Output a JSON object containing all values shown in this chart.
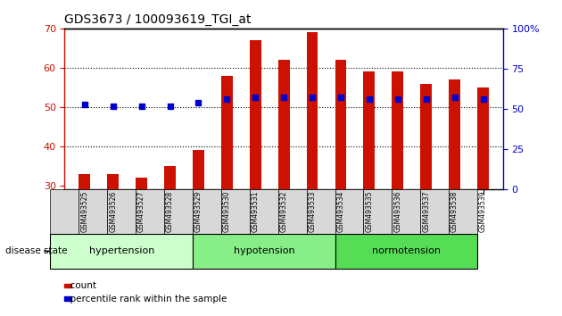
{
  "title": "GDS3673 / 100093619_TGI_at",
  "categories": [
    "GSM493525",
    "GSM493526",
    "GSM493527",
    "GSM493528",
    "GSM493529",
    "GSM493530",
    "GSM493531",
    "GSM493532",
    "GSM493533",
    "GSM493534",
    "GSM493535",
    "GSM493536",
    "GSM493537",
    "GSM493538",
    "GSM493539"
  ],
  "count_values": [
    33,
    33,
    32,
    35,
    39,
    58,
    67,
    62,
    69,
    62,
    59,
    59,
    56,
    57,
    55
  ],
  "percentile_values": [
    53,
    52,
    52,
    52,
    54,
    56,
    57,
    57,
    57,
    57,
    56,
    56,
    56,
    57,
    56
  ],
  "ylim_left": [
    29,
    70
  ],
  "ylim_right": [
    0,
    100
  ],
  "yticks_left": [
    30,
    40,
    50,
    60,
    70
  ],
  "yticks_right": [
    0,
    25,
    50,
    75,
    100
  ],
  "ytick_right_labels": [
    "0",
    "25",
    "50",
    "75",
    "100%"
  ],
  "bar_color": "#cc1100",
  "dot_color": "#0000cc",
  "groups": [
    {
      "label": "hypertension",
      "start": 0,
      "end": 4,
      "color": "#ccffcc"
    },
    {
      "label": "hypotension",
      "start": 5,
      "end": 9,
      "color": "#88ee88"
    },
    {
      "label": "normotension",
      "start": 10,
      "end": 14,
      "color": "#55dd55"
    }
  ],
  "disease_state_label": "disease state",
  "legend_count_label": "count",
  "legend_pct_label": "percentile rank within the sample",
  "bar_width": 0.4,
  "dot_size": 18,
  "tick_label_bg": "#dddddd",
  "plot_bg": "#ffffff"
}
